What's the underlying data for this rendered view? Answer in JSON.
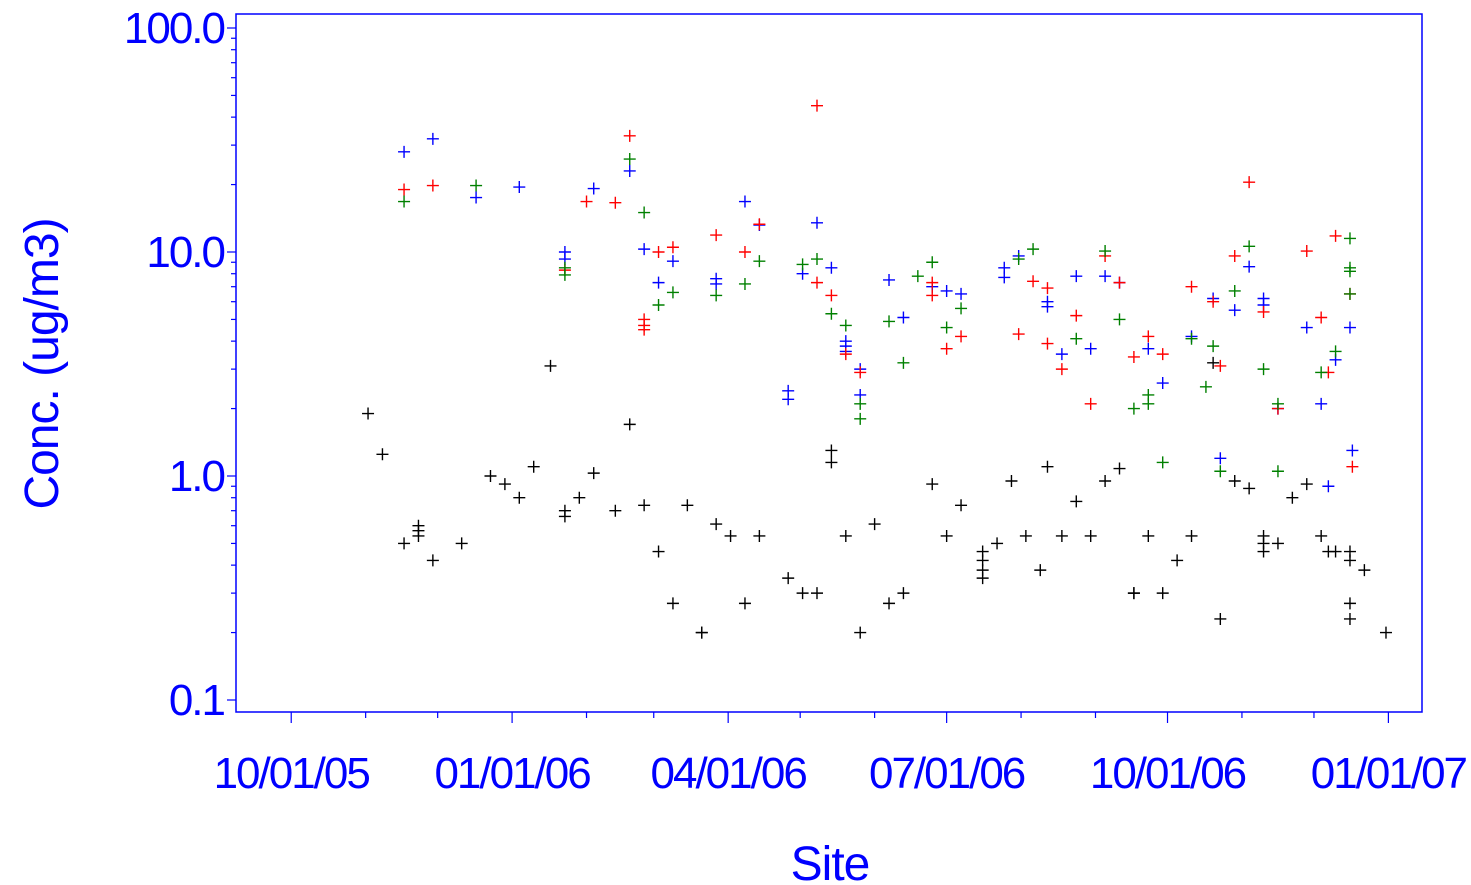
{
  "chart_data": {
    "type": "scatter",
    "title": "",
    "xlabel": "Site",
    "ylabel": "Conc.  (ug/m3)",
    "y_scale": "log",
    "ylim": [
      0.1,
      100.0
    ],
    "xlim": [
      "2005-09-08",
      "2007-01-15"
    ],
    "y_ticks": [
      {
        "value": 0.1,
        "label": "0.1"
      },
      {
        "value": 1.0,
        "label": "1.0"
      },
      {
        "value": 10.0,
        "label": "10.0"
      },
      {
        "value": 100.0,
        "label": "100.0"
      }
    ],
    "x_ticks": [
      {
        "value": "2005-10-01",
        "label": "10/01/05"
      },
      {
        "value": "2006-01-01",
        "label": "01/01/06"
      },
      {
        "value": "2006-04-01",
        "label": "04/01/06"
      },
      {
        "value": "2006-07-01",
        "label": "07/01/06"
      },
      {
        "value": "2006-10-01",
        "label": "10/01/06"
      },
      {
        "value": "2007-01-01",
        "label": "01/01/07"
      }
    ],
    "grid": false,
    "marker": "plus",
    "colors": {
      "axis": "#0000ff",
      "blue": "#0000ff",
      "red": "#ff0000",
      "green": "#008000",
      "black": "#000000"
    },
    "series": [
      {
        "color": "blue",
        "points": [
          [
            "2005-11-17",
            28
          ],
          [
            "2005-11-29",
            32
          ],
          [
            "2005-12-17",
            17.5
          ],
          [
            "2006-01-04",
            19.5
          ],
          [
            "2006-01-23",
            10
          ],
          [
            "2006-01-23",
            9.3
          ],
          [
            "2006-02-04",
            19.2
          ],
          [
            "2006-02-19",
            23
          ],
          [
            "2006-02-25",
            10.3
          ],
          [
            "2006-03-03",
            7.3
          ],
          [
            "2006-03-09",
            9.1
          ],
          [
            "2006-03-27",
            7.6
          ],
          [
            "2006-03-27",
            7.2
          ],
          [
            "2006-04-08",
            16.8
          ],
          [
            "2006-04-14",
            13.2
          ],
          [
            "2006-04-26",
            2.4
          ],
          [
            "2006-04-26",
            2.2
          ],
          [
            "2006-05-02",
            8
          ],
          [
            "2006-05-08",
            13.5
          ],
          [
            "2006-05-14",
            8.5
          ],
          [
            "2006-05-20",
            4
          ],
          [
            "2006-05-20",
            3.8
          ],
          [
            "2006-05-20",
            3.6
          ],
          [
            "2006-05-26",
            3
          ],
          [
            "2006-05-26",
            2.3
          ],
          [
            "2006-06-07",
            7.5
          ],
          [
            "2006-06-13",
            5.1
          ],
          [
            "2006-06-25",
            7
          ],
          [
            "2006-07-01",
            6.7
          ],
          [
            "2006-07-07",
            6.5
          ],
          [
            "2006-07-25",
            8.5
          ],
          [
            "2006-07-25",
            7.7
          ],
          [
            "2006-07-31",
            9.6
          ],
          [
            "2006-08-12",
            6
          ],
          [
            "2006-08-12",
            5.7
          ],
          [
            "2006-08-18",
            3.5
          ],
          [
            "2006-08-24",
            7.8
          ],
          [
            "2006-08-30",
            3.7
          ],
          [
            "2006-09-05",
            7.8
          ],
          [
            "2006-09-11",
            7.3
          ],
          [
            "2006-09-23",
            3.7
          ],
          [
            "2006-09-29",
            2.6
          ],
          [
            "2006-10-11",
            4.2
          ],
          [
            "2006-10-20",
            6.2
          ],
          [
            "2006-10-23",
            1.2
          ],
          [
            "2006-10-29",
            5.5
          ],
          [
            "2006-11-04",
            8.6
          ],
          [
            "2006-11-10",
            6.2
          ],
          [
            "2006-11-10",
            5.8
          ],
          [
            "2006-11-16",
            2
          ],
          [
            "2006-11-28",
            4.6
          ],
          [
            "2006-12-04",
            2.1
          ],
          [
            "2006-12-07",
            0.9
          ],
          [
            "2006-12-10",
            3.3
          ],
          [
            "2006-12-16",
            4.6
          ],
          [
            "2006-12-17",
            1.3
          ]
        ]
      },
      {
        "color": "red",
        "points": [
          [
            "2005-11-17",
            19
          ],
          [
            "2005-11-29",
            19.8
          ],
          [
            "2006-01-23",
            8.3
          ],
          [
            "2006-02-01",
            16.8
          ],
          [
            "2006-02-13",
            16.6
          ],
          [
            "2006-02-19",
            33
          ],
          [
            "2006-02-25",
            5
          ],
          [
            "2006-02-25",
            4.7
          ],
          [
            "2006-02-25",
            4.5
          ],
          [
            "2006-03-03",
            10
          ],
          [
            "2006-03-09",
            10.5
          ],
          [
            "2006-03-27",
            11.9
          ],
          [
            "2006-04-08",
            10
          ],
          [
            "2006-04-14",
            13.3
          ],
          [
            "2006-05-08",
            45
          ],
          [
            "2006-05-08",
            7.3
          ],
          [
            "2006-05-14",
            6.4
          ],
          [
            "2006-05-20",
            3.5
          ],
          [
            "2006-05-26",
            2.9
          ],
          [
            "2006-06-25",
            7.3
          ],
          [
            "2006-06-25",
            6.4
          ],
          [
            "2006-07-01",
            3.7
          ],
          [
            "2006-07-07",
            4.2
          ],
          [
            "2006-07-31",
            4.3
          ],
          [
            "2006-08-06",
            7.4
          ],
          [
            "2006-08-12",
            6.9
          ],
          [
            "2006-08-12",
            3.9
          ],
          [
            "2006-08-18",
            3
          ],
          [
            "2006-08-24",
            5.2
          ],
          [
            "2006-08-30",
            2.1
          ],
          [
            "2006-09-05",
            9.6
          ],
          [
            "2006-09-11",
            7.3
          ],
          [
            "2006-09-17",
            3.4
          ],
          [
            "2006-09-23",
            4.2
          ],
          [
            "2006-09-29",
            3.5
          ],
          [
            "2006-10-11",
            7
          ],
          [
            "2006-10-20",
            6
          ],
          [
            "2006-10-23",
            3.1
          ],
          [
            "2006-10-29",
            9.6
          ],
          [
            "2006-11-04",
            20.5
          ],
          [
            "2006-11-10",
            5.4
          ],
          [
            "2006-11-16",
            2
          ],
          [
            "2006-11-28",
            10.1
          ],
          [
            "2006-12-04",
            5.1
          ],
          [
            "2006-12-07",
            2.9
          ],
          [
            "2006-12-10",
            11.8
          ],
          [
            "2006-12-16",
            6.5
          ],
          [
            "2006-12-17",
            1.1
          ]
        ]
      },
      {
        "color": "green",
        "points": [
          [
            "2005-11-17",
            16.8
          ],
          [
            "2005-12-17",
            19.8
          ],
          [
            "2006-01-23",
            8.5
          ],
          [
            "2006-01-23",
            7.9
          ],
          [
            "2006-02-19",
            26
          ],
          [
            "2006-02-25",
            15
          ],
          [
            "2006-03-03",
            5.8
          ],
          [
            "2006-03-09",
            6.6
          ],
          [
            "2006-03-27",
            6.4
          ],
          [
            "2006-04-08",
            7.2
          ],
          [
            "2006-04-14",
            9.1
          ],
          [
            "2006-05-02",
            8.8
          ],
          [
            "2006-05-08",
            9.3
          ],
          [
            "2006-05-14",
            5.3
          ],
          [
            "2006-05-20",
            4.7
          ],
          [
            "2006-05-26",
            2.1
          ],
          [
            "2006-05-26",
            1.8
          ],
          [
            "2006-06-07",
            4.9
          ],
          [
            "2006-06-13",
            3.2
          ],
          [
            "2006-06-19",
            7.8
          ],
          [
            "2006-06-25",
            9
          ],
          [
            "2006-07-01",
            4.6
          ],
          [
            "2006-07-07",
            5.6
          ],
          [
            "2006-07-31",
            9.3
          ],
          [
            "2006-08-06",
            10.3
          ],
          [
            "2006-08-24",
            4.1
          ],
          [
            "2006-09-05",
            10.1
          ],
          [
            "2006-09-11",
            5
          ],
          [
            "2006-09-17",
            2
          ],
          [
            "2006-09-23",
            2.3
          ],
          [
            "2006-09-23",
            2.1
          ],
          [
            "2006-09-29",
            1.15
          ],
          [
            "2006-10-11",
            4.1
          ],
          [
            "2006-10-17",
            2.5
          ],
          [
            "2006-10-20",
            3.8
          ],
          [
            "2006-10-23",
            1.05
          ],
          [
            "2006-10-29",
            6.7
          ],
          [
            "2006-11-04",
            10.6
          ],
          [
            "2006-11-10",
            3
          ],
          [
            "2006-11-16",
            2.1
          ],
          [
            "2006-12-04",
            2.9
          ],
          [
            "2006-12-10",
            3.6
          ],
          [
            "2006-12-16",
            11.5
          ],
          [
            "2006-12-16",
            8.5
          ],
          [
            "2006-12-16",
            8.2
          ],
          [
            "2006-12-16",
            6.5
          ],
          [
            "2006-11-16",
            1.05
          ]
        ]
      },
      {
        "color": "black",
        "points": [
          [
            "2005-11-02",
            1.9
          ],
          [
            "2005-11-08",
            1.25
          ],
          [
            "2005-11-17",
            0.5
          ],
          [
            "2005-11-23",
            0.6
          ],
          [
            "2005-11-23",
            0.57
          ],
          [
            "2005-11-23",
            0.54
          ],
          [
            "2005-11-29",
            0.42
          ],
          [
            "2005-12-11",
            0.5
          ],
          [
            "2005-12-23",
            1
          ],
          [
            "2005-12-29",
            0.92
          ],
          [
            "2006-01-04",
            0.8
          ],
          [
            "2006-01-10",
            1.1
          ],
          [
            "2006-01-17",
            3.1
          ],
          [
            "2006-01-23",
            0.7
          ],
          [
            "2006-01-23",
            0.66
          ],
          [
            "2006-01-29",
            0.8
          ],
          [
            "2006-02-04",
            1.03
          ],
          [
            "2006-02-13",
            0.7
          ],
          [
            "2006-02-19",
            1.7
          ],
          [
            "2006-02-25",
            0.74
          ],
          [
            "2006-03-03",
            0.46
          ],
          [
            "2006-03-09",
            0.27
          ],
          [
            "2006-03-15",
            0.74
          ],
          [
            "2006-03-21",
            0.2
          ],
          [
            "2006-03-21",
            0.2
          ],
          [
            "2006-03-27",
            0.61
          ],
          [
            "2006-04-02",
            0.54
          ],
          [
            "2006-04-08",
            0.27
          ],
          [
            "2006-04-14",
            0.54
          ],
          [
            "2006-04-26",
            0.35
          ],
          [
            "2006-05-02",
            0.3
          ],
          [
            "2006-05-08",
            0.3
          ],
          [
            "2006-05-14",
            1.3
          ],
          [
            "2006-05-14",
            1.15
          ],
          [
            "2006-05-20",
            0.54
          ],
          [
            "2006-05-26",
            0.2
          ],
          [
            "2006-06-01",
            0.61
          ],
          [
            "2006-06-07",
            0.27
          ],
          [
            "2006-06-13",
            0.3
          ],
          [
            "2006-06-25",
            0.92
          ],
          [
            "2006-07-01",
            0.54
          ],
          [
            "2006-07-07",
            0.74
          ],
          [
            "2006-07-16",
            0.46
          ],
          [
            "2006-07-16",
            0.42
          ],
          [
            "2006-07-16",
            0.38
          ],
          [
            "2006-07-16",
            0.35
          ],
          [
            "2006-07-22",
            0.5
          ],
          [
            "2006-07-28",
            0.95
          ],
          [
            "2006-08-03",
            0.54
          ],
          [
            "2006-08-09",
            0.38
          ],
          [
            "2006-08-12",
            1.1
          ],
          [
            "2006-08-18",
            0.54
          ],
          [
            "2006-08-24",
            0.77
          ],
          [
            "2006-08-30",
            0.54
          ],
          [
            "2006-09-05",
            0.95
          ],
          [
            "2006-09-11",
            1.08
          ],
          [
            "2006-09-17",
            0.3
          ],
          [
            "2006-09-17",
            0.3
          ],
          [
            "2006-09-23",
            0.54
          ],
          [
            "2006-09-29",
            0.3
          ],
          [
            "2006-10-05",
            0.42
          ],
          [
            "2006-10-11",
            0.54
          ],
          [
            "2006-10-20",
            3.2
          ],
          [
            "2006-10-23",
            0.23
          ],
          [
            "2006-10-29",
            0.95
          ],
          [
            "2006-11-04",
            0.88
          ],
          [
            "2006-11-10",
            0.54
          ],
          [
            "2006-11-10",
            0.46
          ],
          [
            "2006-11-10",
            0.5
          ],
          [
            "2006-11-16",
            0.5
          ],
          [
            "2006-11-22",
            0.8
          ],
          [
            "2006-11-28",
            0.92
          ],
          [
            "2006-12-04",
            0.54
          ],
          [
            "2006-12-07",
            0.46
          ],
          [
            "2006-12-10",
            0.46
          ],
          [
            "2006-12-16",
            0.46
          ],
          [
            "2006-12-16",
            0.42
          ],
          [
            "2006-12-16",
            0.27
          ],
          [
            "2006-12-16",
            0.23
          ],
          [
            "2006-12-22",
            0.38
          ],
          [
            "2006-12-31",
            0.2
          ]
        ]
      }
    ]
  }
}
